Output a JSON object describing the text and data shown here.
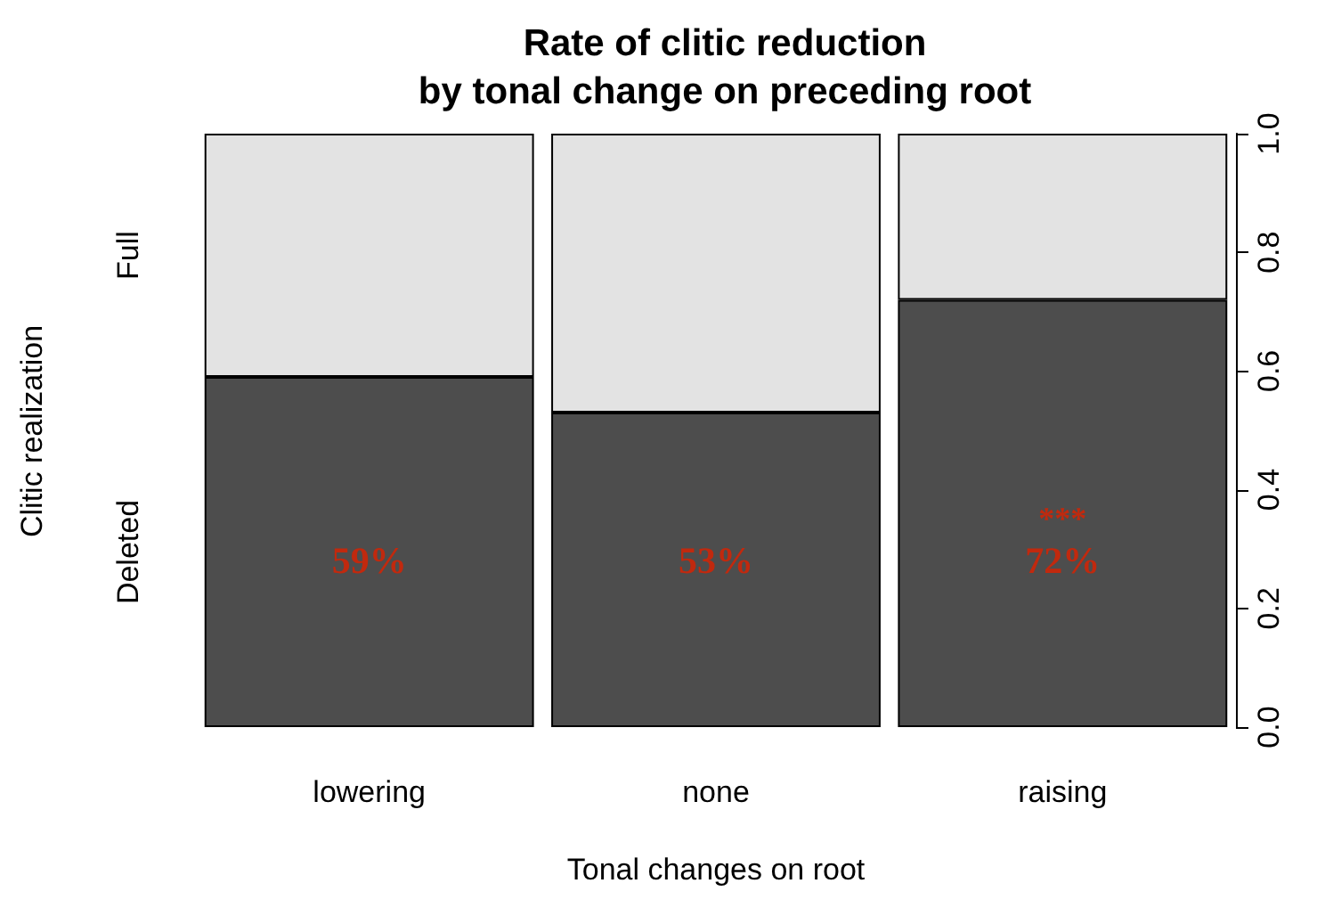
{
  "chart_data": {
    "type": "bar",
    "stacked": true,
    "title": "Rate of clitic reduction\nby tonal change on preceding root",
    "xlabel": "Tonal changes on root",
    "ylabel": "Clitic realization",
    "categories": [
      "lowering",
      "none",
      "raising"
    ],
    "series": [
      {
        "name": "Deleted",
        "color": "#4d4d4d",
        "values": [
          0.59,
          0.53,
          0.72
        ],
        "value_labels": [
          "59%",
          "53%",
          "72%"
        ]
      },
      {
        "name": "Full",
        "color": "#e3e3e3",
        "values": [
          0.41,
          0.47,
          0.28
        ]
      }
    ],
    "ylim": [
      0,
      1
    ],
    "yticks": [
      {
        "value": 0,
        "label": "0.0"
      },
      0.2,
      0.4,
      0.6,
      0.8,
      {
        "value": 1,
        "label": "1.0"
      }
    ],
    "annotations": [
      "***"
    ],
    "grid": false,
    "legend": false
  }
}
